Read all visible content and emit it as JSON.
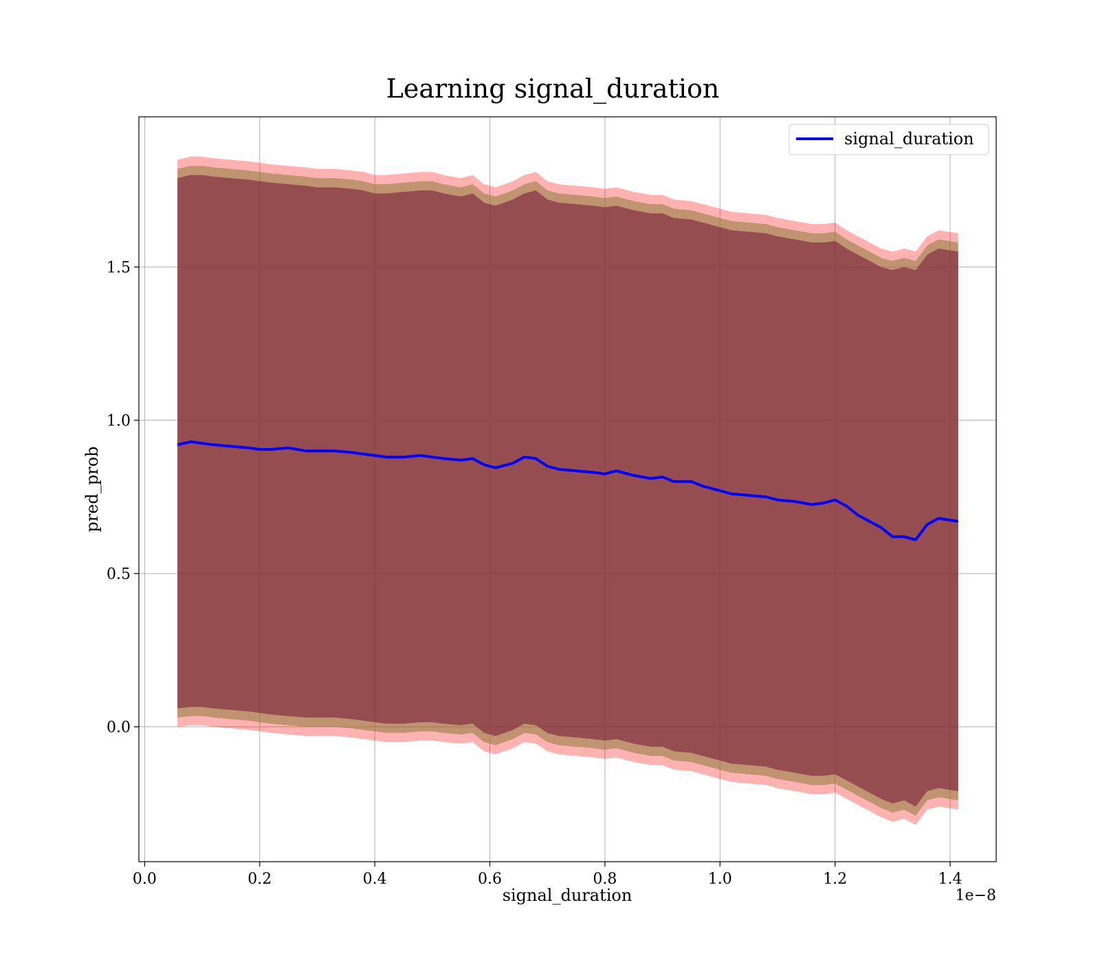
{
  "chart_data": {
    "type": "line",
    "title": "Learning signal_duration",
    "xlabel": "signal_duration",
    "ylabel": "pred_prob",
    "x_offset_label": "1e−8",
    "xlim": [
      -0.01,
      1.48
    ],
    "ylim": [
      -0.44,
      1.99
    ],
    "x_ticks": [
      0.0,
      0.2,
      0.4,
      0.6,
      0.8,
      1.0,
      1.2,
      1.4
    ],
    "x_tick_labels": [
      "0.0",
      "0.2",
      "0.4",
      "0.6",
      "0.8",
      "1.0",
      "1.2",
      "1.4"
    ],
    "y_ticks": [
      0.0,
      0.5,
      1.0,
      1.5
    ],
    "y_tick_labels": [
      "0.0",
      "0.5",
      "1.0",
      "1.5"
    ],
    "grid": true,
    "legend_position": "top-right",
    "colors": {
      "line": "#0000ff",
      "band_outer": "#ff0000",
      "band_mid": "#8c7a3c",
      "band_inner": "#7a1e3a"
    },
    "series": [
      {
        "name": "signal_duration",
        "x": [
          0.057,
          0.08,
          0.1,
          0.12,
          0.15,
          0.18,
          0.2,
          0.22,
          0.25,
          0.28,
          0.3,
          0.33,
          0.36,
          0.38,
          0.4,
          0.42,
          0.45,
          0.48,
          0.5,
          0.52,
          0.55,
          0.57,
          0.59,
          0.61,
          0.64,
          0.66,
          0.68,
          0.7,
          0.72,
          0.75,
          0.78,
          0.8,
          0.82,
          0.85,
          0.88,
          0.9,
          0.92,
          0.95,
          0.97,
          1.0,
          1.02,
          1.05,
          1.08,
          1.1,
          1.13,
          1.16,
          1.18,
          1.2,
          1.22,
          1.24,
          1.26,
          1.28,
          1.3,
          1.32,
          1.34,
          1.36,
          1.38,
          1.414
        ],
        "values": [
          0.92,
          0.93,
          0.925,
          0.92,
          0.915,
          0.91,
          0.905,
          0.905,
          0.91,
          0.9,
          0.9,
          0.9,
          0.895,
          0.89,
          0.885,
          0.88,
          0.88,
          0.885,
          0.88,
          0.875,
          0.87,
          0.875,
          0.855,
          0.845,
          0.86,
          0.88,
          0.875,
          0.85,
          0.84,
          0.835,
          0.83,
          0.825,
          0.835,
          0.82,
          0.81,
          0.815,
          0.8,
          0.8,
          0.785,
          0.77,
          0.76,
          0.755,
          0.75,
          0.74,
          0.735,
          0.725,
          0.73,
          0.74,
          0.72,
          0.69,
          0.67,
          0.65,
          0.62,
          0.62,
          0.61,
          0.66,
          0.68,
          0.67
        ],
        "upper_outer": [
          1.85,
          1.86,
          1.86,
          1.855,
          1.85,
          1.845,
          1.84,
          1.835,
          1.83,
          1.825,
          1.82,
          1.82,
          1.815,
          1.81,
          1.8,
          1.8,
          1.805,
          1.81,
          1.81,
          1.8,
          1.79,
          1.8,
          1.77,
          1.76,
          1.78,
          1.8,
          1.81,
          1.78,
          1.77,
          1.765,
          1.76,
          1.755,
          1.76,
          1.745,
          1.735,
          1.735,
          1.72,
          1.715,
          1.705,
          1.69,
          1.68,
          1.675,
          1.67,
          1.66,
          1.65,
          1.64,
          1.64,
          1.645,
          1.62,
          1.6,
          1.58,
          1.56,
          1.55,
          1.56,
          1.55,
          1.6,
          1.62,
          1.61
        ],
        "upper_mid": [
          1.82,
          1.83,
          1.83,
          1.825,
          1.82,
          1.815,
          1.81,
          1.805,
          1.8,
          1.795,
          1.79,
          1.79,
          1.785,
          1.78,
          1.77,
          1.77,
          1.775,
          1.78,
          1.78,
          1.77,
          1.76,
          1.77,
          1.74,
          1.73,
          1.75,
          1.77,
          1.78,
          1.75,
          1.74,
          1.735,
          1.73,
          1.725,
          1.73,
          1.715,
          1.705,
          1.705,
          1.69,
          1.685,
          1.675,
          1.66,
          1.65,
          1.645,
          1.64,
          1.63,
          1.62,
          1.61,
          1.61,
          1.615,
          1.59,
          1.57,
          1.55,
          1.53,
          1.52,
          1.53,
          1.52,
          1.57,
          1.59,
          1.58
        ],
        "upper_inner": [
          1.79,
          1.8,
          1.8,
          1.795,
          1.79,
          1.785,
          1.78,
          1.775,
          1.77,
          1.765,
          1.76,
          1.76,
          1.755,
          1.75,
          1.74,
          1.74,
          1.745,
          1.75,
          1.75,
          1.74,
          1.73,
          1.74,
          1.71,
          1.7,
          1.72,
          1.74,
          1.75,
          1.72,
          1.71,
          1.705,
          1.7,
          1.695,
          1.7,
          1.685,
          1.675,
          1.675,
          1.66,
          1.655,
          1.645,
          1.63,
          1.62,
          1.615,
          1.61,
          1.6,
          1.59,
          1.58,
          1.58,
          1.585,
          1.56,
          1.54,
          1.52,
          1.5,
          1.49,
          1.5,
          1.49,
          1.54,
          1.56,
          1.55
        ],
        "lower_inner": [
          0.06,
          0.065,
          0.065,
          0.06,
          0.055,
          0.05,
          0.045,
          0.04,
          0.035,
          0.03,
          0.03,
          0.03,
          0.025,
          0.02,
          0.015,
          0.01,
          0.01,
          0.015,
          0.015,
          0.01,
          0.005,
          0.01,
          -0.02,
          -0.03,
          -0.01,
          0.01,
          0.005,
          -0.02,
          -0.03,
          -0.035,
          -0.04,
          -0.045,
          -0.04,
          -0.055,
          -0.065,
          -0.065,
          -0.08,
          -0.085,
          -0.095,
          -0.11,
          -0.12,
          -0.125,
          -0.13,
          -0.14,
          -0.15,
          -0.16,
          -0.16,
          -0.155,
          -0.175,
          -0.195,
          -0.215,
          -0.235,
          -0.25,
          -0.24,
          -0.26,
          -0.21,
          -0.2,
          -0.21
        ],
        "lower_mid": [
          0.03,
          0.035,
          0.035,
          0.03,
          0.025,
          0.02,
          0.015,
          0.01,
          0.005,
          0.0,
          0.0,
          0.0,
          -0.005,
          -0.01,
          -0.015,
          -0.02,
          -0.02,
          -0.015,
          -0.015,
          -0.02,
          -0.025,
          -0.02,
          -0.05,
          -0.06,
          -0.04,
          -0.02,
          -0.025,
          -0.05,
          -0.06,
          -0.065,
          -0.07,
          -0.075,
          -0.07,
          -0.085,
          -0.095,
          -0.095,
          -0.11,
          -0.115,
          -0.125,
          -0.14,
          -0.15,
          -0.155,
          -0.16,
          -0.17,
          -0.18,
          -0.19,
          -0.19,
          -0.185,
          -0.205,
          -0.225,
          -0.245,
          -0.265,
          -0.28,
          -0.27,
          -0.29,
          -0.24,
          -0.23,
          -0.24
        ],
        "lower_outer": [
          0.0,
          0.005,
          0.005,
          0.0,
          -0.005,
          -0.01,
          -0.015,
          -0.02,
          -0.025,
          -0.03,
          -0.03,
          -0.03,
          -0.035,
          -0.04,
          -0.045,
          -0.05,
          -0.05,
          -0.045,
          -0.045,
          -0.05,
          -0.055,
          -0.05,
          -0.08,
          -0.09,
          -0.07,
          -0.05,
          -0.055,
          -0.08,
          -0.09,
          -0.095,
          -0.1,
          -0.105,
          -0.1,
          -0.115,
          -0.125,
          -0.125,
          -0.14,
          -0.145,
          -0.155,
          -0.17,
          -0.18,
          -0.185,
          -0.19,
          -0.2,
          -0.21,
          -0.22,
          -0.22,
          -0.215,
          -0.235,
          -0.255,
          -0.275,
          -0.295,
          -0.31,
          -0.3,
          -0.32,
          -0.27,
          -0.26,
          -0.27
        ]
      }
    ]
  }
}
